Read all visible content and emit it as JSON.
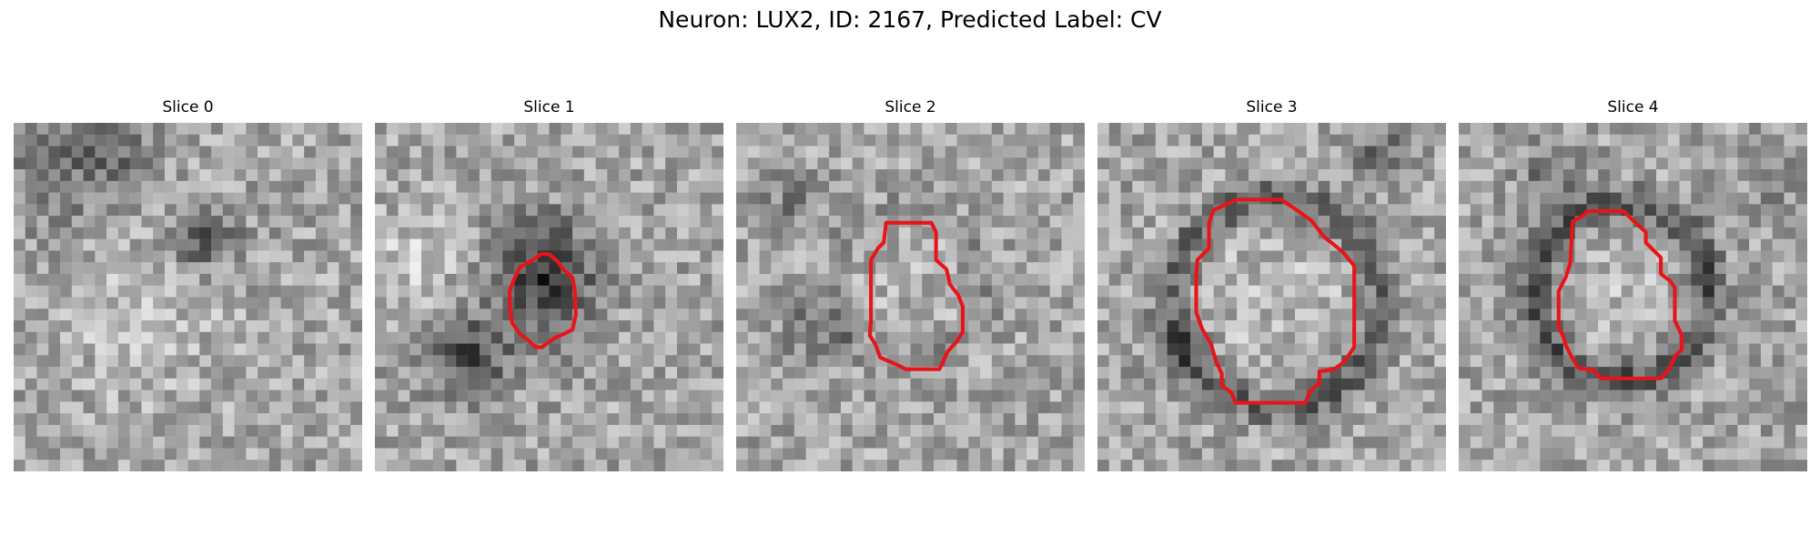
{
  "figure": {
    "title": "Neuron: LUX2, ID: 2167, Predicted Label: CV",
    "outline_color": "#e8141a"
  },
  "panels": [
    {
      "title": "Slice 0",
      "has_outline": false
    },
    {
      "title": "Slice 1",
      "has_outline": true
    },
    {
      "title": "Slice 2",
      "has_outline": true
    },
    {
      "title": "Slice 3",
      "has_outline": true
    },
    {
      "title": "Slice 4",
      "has_outline": true
    }
  ]
}
